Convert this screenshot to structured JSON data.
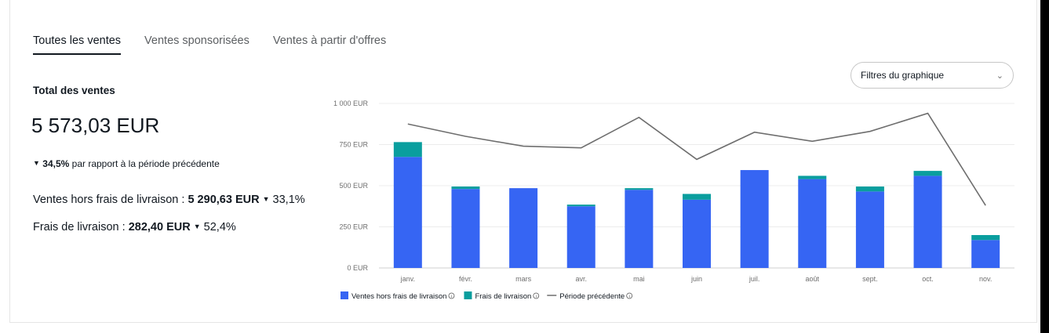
{
  "tabs": [
    {
      "label": "Toutes les ventes",
      "active": true
    },
    {
      "label": "Ventes sponsorisées",
      "active": false
    },
    {
      "label": "Ventes à partir d'offres",
      "active": false
    }
  ],
  "summary": {
    "total_label": "Total des ventes",
    "total_value": "5 573,03 EUR",
    "change_pct": "34,5%",
    "change_text": "par rapport à la période précédente",
    "net_label": "Ventes hors frais de livraison :",
    "net_value": "5 290,63 EUR",
    "net_change": "33,1%",
    "shipping_label": "Frais de livraison :",
    "shipping_value": "282,40 EUR",
    "shipping_change": "52,4%"
  },
  "filter": {
    "label": "Filtres du graphique"
  },
  "colors": {
    "net": "#3665f3",
    "shipping": "#0a9e9e",
    "previous": "#6e6e6e"
  },
  "chart_data": {
    "type": "bar",
    "stacked": true,
    "categories": [
      "janv.",
      "févr.",
      "mars",
      "avr.",
      "mai",
      "juin",
      "juil.",
      "août",
      "sept.",
      "oct.",
      "nov."
    ],
    "y_ticks": [
      "0 EUR",
      "250 EUR",
      "500 EUR",
      "750 EUR",
      "1 000 EUR"
    ],
    "ylim": [
      0,
      1000
    ],
    "grid": true,
    "legend_position": "bottom",
    "series": [
      {
        "name": "Ventes hors frais de livraison",
        "type": "bar",
        "values": [
          675,
          480,
          485,
          375,
          475,
          415,
          595,
          540,
          465,
          560,
          170
        ]
      },
      {
        "name": "Frais de livraison",
        "type": "bar",
        "values": [
          90,
          15,
          0,
          10,
          10,
          35,
          0,
          20,
          30,
          30,
          30
        ]
      },
      {
        "name": "Période précédente",
        "type": "line",
        "values": [
          875,
          800,
          740,
          730,
          915,
          660,
          825,
          770,
          830,
          940,
          380
        ]
      }
    ]
  }
}
